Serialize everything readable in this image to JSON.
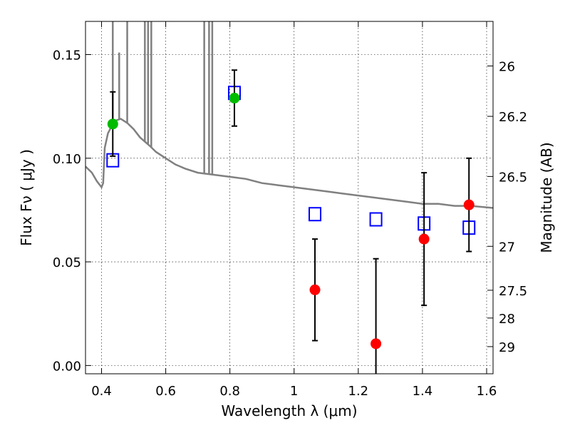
{
  "chart_data": {
    "type": "scatter",
    "xlabel": "Wavelength  λ (μm)",
    "ylabel": "Flux  Fν  ( μJy )",
    "y2label": "Magnitude (AB)",
    "xlim": [
      0.35,
      1.62
    ],
    "ylim": [
      -0.004,
      0.166
    ],
    "grid": true,
    "x_ticks": [
      0.4,
      0.6,
      0.8,
      1.0,
      1.2,
      1.4,
      1.6
    ],
    "x_tick_labels": [
      "0.4",
      "0.6",
      "0.8",
      "1",
      "1.2",
      "1.4",
      "1.6"
    ],
    "y_ticks": [
      0.0,
      0.05,
      0.1,
      0.15
    ],
    "y_tick_labels": [
      "0.00",
      "0.05",
      "0.10",
      "0.15"
    ],
    "right_axis_ticks": [
      {
        "label": "26",
        "flux": 0.1445
      },
      {
        "label": "26.2",
        "flux": 0.1202
      },
      {
        "label": "26.5",
        "flux": 0.0912
      },
      {
        "label": "27",
        "flux": 0.0575
      },
      {
        "label": "27.5",
        "flux": 0.0363
      },
      {
        "label": "28",
        "flux": 0.0229
      },
      {
        "label": "29",
        "flux": 0.0091
      }
    ],
    "series": [
      {
        "kind": "measurement",
        "color": "#00bb00",
        "points": [
          {
            "x": 0.435,
            "y": 0.1165,
            "yerr": 0.0155
          },
          {
            "x": 0.814,
            "y": 0.129,
            "yerr": 0.0135
          }
        ]
      },
      {
        "kind": "measurement",
        "color": "#ff0000",
        "points": [
          {
            "x": 1.065,
            "y": 0.0365,
            "yerr": 0.0245
          },
          {
            "x": 1.255,
            "y": 0.0105,
            "yerr": 0.041
          },
          {
            "x": 1.405,
            "y": 0.061,
            "yerr": 0.032
          },
          {
            "x": 1.545,
            "y": 0.0775,
            "yerr": 0.0225
          }
        ]
      },
      {
        "kind": "model-bandpass",
        "color": "#0000ff",
        "points": [
          {
            "x": 0.435,
            "y": 0.099
          },
          {
            "x": 0.814,
            "y": 0.1315
          },
          {
            "x": 1.065,
            "y": 0.073
          },
          {
            "x": 1.255,
            "y": 0.0705
          },
          {
            "x": 1.405,
            "y": 0.0685
          },
          {
            "x": 1.545,
            "y": 0.0665
          }
        ]
      },
      {
        "kind": "model-spectrum",
        "color": "#808080",
        "points": [
          [
            0.35,
            0.096
          ],
          [
            0.37,
            0.093
          ],
          [
            0.385,
            0.089
          ],
          [
            0.4,
            0.086
          ],
          [
            0.405,
            0.088
          ],
          [
            0.41,
            0.105
          ],
          [
            0.42,
            0.112
          ],
          [
            0.43,
            0.115
          ],
          [
            0.44,
            0.118
          ],
          [
            0.46,
            0.119
          ],
          [
            0.48,
            0.117
          ],
          [
            0.5,
            0.114
          ],
          [
            0.52,
            0.11
          ],
          [
            0.55,
            0.106
          ],
          [
            0.57,
            0.103
          ],
          [
            0.6,
            0.1
          ],
          [
            0.63,
            0.097
          ],
          [
            0.66,
            0.095
          ],
          [
            0.7,
            0.093
          ],
          [
            0.75,
            0.092
          ],
          [
            0.8,
            0.091
          ],
          [
            0.85,
            0.09
          ],
          [
            0.9,
            0.088
          ],
          [
            0.95,
            0.087
          ],
          [
            1.0,
            0.086
          ],
          [
            1.05,
            0.085
          ],
          [
            1.1,
            0.084
          ],
          [
            1.15,
            0.083
          ],
          [
            1.2,
            0.082
          ],
          [
            1.25,
            0.081
          ],
          [
            1.3,
            0.08
          ],
          [
            1.35,
            0.079
          ],
          [
            1.4,
            0.078
          ],
          [
            1.45,
            0.078
          ],
          [
            1.5,
            0.077
          ],
          [
            1.55,
            0.077
          ],
          [
            1.62,
            0.076
          ]
        ],
        "spikes": [
          {
            "x": 0.435,
            "y": 0.2
          },
          {
            "x": 0.455,
            "y": 0.151
          },
          {
            "x": 0.48,
            "y": 0.168
          },
          {
            "x": 0.535,
            "y": 0.168
          },
          {
            "x": 0.545,
            "y": 0.168
          },
          {
            "x": 0.555,
            "y": 0.168
          },
          {
            "x": 0.72,
            "y": 0.168
          },
          {
            "x": 0.735,
            "y": 0.168
          },
          {
            "x": 0.745,
            "y": 0.168
          }
        ]
      }
    ]
  }
}
